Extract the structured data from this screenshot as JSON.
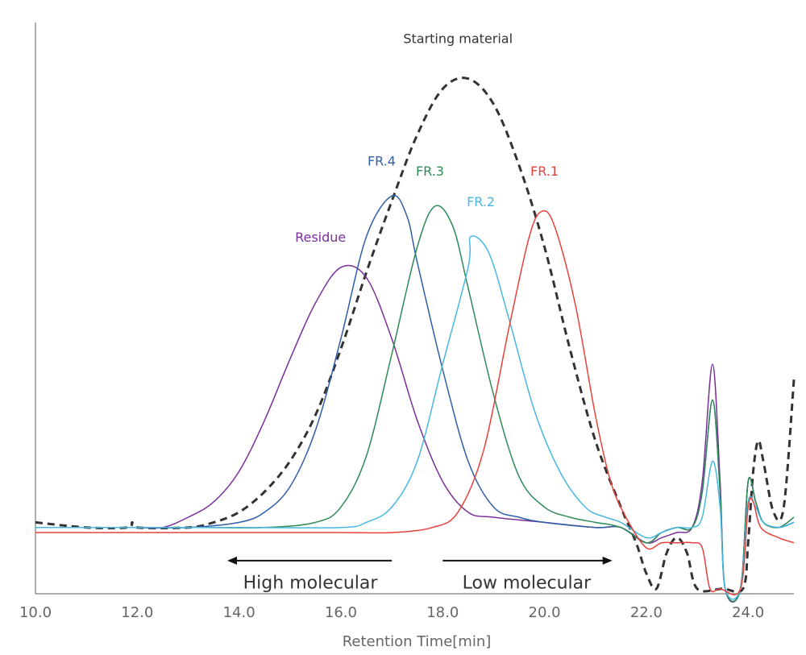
{
  "chart_data": {
    "type": "line",
    "xlabel": "Retention Time[min]",
    "ylabel": "",
    "xlim": [
      10.0,
      24.9
    ],
    "ylim": [
      -0.12,
      1.0
    ],
    "grid": false,
    "x_ticks": [
      "10.0",
      "12.0",
      "14.0",
      "16.0",
      "18.0",
      "20.0",
      "22.0",
      "24.0"
    ],
    "series": [
      {
        "name": "Starting material",
        "color": "#333333",
        "dash": true,
        "points": [
          [
            10.0,
            0.02
          ],
          [
            11.0,
            0.01
          ],
          [
            11.8,
            0.01
          ],
          [
            11.9,
            0.02
          ],
          [
            12.0,
            0.01
          ],
          [
            13.0,
            0.01
          ],
          [
            13.5,
            0.02
          ],
          [
            14.0,
            0.04
          ],
          [
            14.5,
            0.08
          ],
          [
            15.0,
            0.14
          ],
          [
            15.5,
            0.23
          ],
          [
            16.0,
            0.36
          ],
          [
            16.5,
            0.51
          ],
          [
            17.0,
            0.65
          ],
          [
            17.5,
            0.78
          ],
          [
            18.0,
            0.87
          ],
          [
            18.5,
            0.89
          ],
          [
            19.0,
            0.84
          ],
          [
            19.5,
            0.72
          ],
          [
            20.0,
            0.56
          ],
          [
            20.5,
            0.36
          ],
          [
            21.0,
            0.18
          ],
          [
            21.5,
            0.05
          ],
          [
            21.8,
            -0.02
          ],
          [
            22.0,
            -0.08
          ],
          [
            22.2,
            -0.11
          ],
          [
            22.4,
            -0.04
          ],
          [
            22.6,
            -0.01
          ],
          [
            22.8,
            -0.04
          ],
          [
            23.0,
            -0.11
          ],
          [
            23.5,
            -0.11
          ],
          [
            23.9,
            -0.11
          ],
          [
            24.0,
            -0.02
          ],
          [
            24.1,
            0.12
          ],
          [
            24.2,
            0.18
          ],
          [
            24.3,
            0.14
          ],
          [
            24.5,
            0.04
          ],
          [
            24.7,
            0.05
          ],
          [
            24.9,
            0.3
          ]
        ]
      },
      {
        "name": "Residue",
        "color": "#7b2f9a",
        "dash": false,
        "points": [
          [
            10.0,
            0.01
          ],
          [
            11.0,
            0.01
          ],
          [
            12.0,
            0.01
          ],
          [
            12.5,
            0.01
          ],
          [
            13.0,
            0.03
          ],
          [
            13.5,
            0.06
          ],
          [
            14.0,
            0.12
          ],
          [
            14.5,
            0.22
          ],
          [
            15.0,
            0.34
          ],
          [
            15.5,
            0.45
          ],
          [
            16.0,
            0.52
          ],
          [
            16.5,
            0.5
          ],
          [
            17.0,
            0.38
          ],
          [
            17.5,
            0.22
          ],
          [
            18.0,
            0.1
          ],
          [
            18.5,
            0.04
          ],
          [
            19.0,
            0.03
          ],
          [
            20.0,
            0.02
          ],
          [
            21.0,
            0.01
          ],
          [
            21.5,
            0.01
          ],
          [
            22.0,
            -0.02
          ],
          [
            22.3,
            -0.01
          ],
          [
            22.6,
            0.0
          ],
          [
            22.9,
            0.01
          ],
          [
            23.1,
            0.1
          ],
          [
            23.3,
            0.33
          ],
          [
            23.45,
            0.1
          ],
          [
            23.55,
            -0.11
          ],
          [
            23.85,
            -0.11
          ],
          [
            24.0,
            0.1
          ],
          [
            24.15,
            0.06
          ],
          [
            24.3,
            0.02
          ],
          [
            24.6,
            0.01
          ],
          [
            24.9,
            0.02
          ]
        ]
      },
      {
        "name": "FR.4",
        "color": "#2f5fa7",
        "dash": false,
        "points": [
          [
            10.0,
            0.01
          ],
          [
            12.0,
            0.01
          ],
          [
            13.0,
            0.01
          ],
          [
            14.0,
            0.02
          ],
          [
            14.5,
            0.04
          ],
          [
            15.0,
            0.09
          ],
          [
            15.5,
            0.2
          ],
          [
            16.0,
            0.38
          ],
          [
            16.5,
            0.58
          ],
          [
            17.0,
            0.66
          ],
          [
            17.3,
            0.62
          ],
          [
            17.5,
            0.53
          ],
          [
            18.0,
            0.32
          ],
          [
            18.5,
            0.14
          ],
          [
            19.0,
            0.05
          ],
          [
            19.5,
            0.03
          ],
          [
            20.0,
            0.02
          ],
          [
            21.0,
            0.01
          ],
          [
            21.5,
            0.01
          ],
          [
            22.0,
            -0.02
          ],
          [
            22.3,
            0.0
          ],
          [
            22.6,
            0.01
          ],
          [
            22.9,
            0.01
          ],
          [
            23.1,
            0.08
          ],
          [
            23.3,
            0.26
          ],
          [
            23.45,
            0.08
          ],
          [
            23.55,
            -0.11
          ],
          [
            23.85,
            -0.11
          ],
          [
            24.0,
            0.1
          ],
          [
            24.15,
            0.06
          ],
          [
            24.3,
            0.02
          ],
          [
            24.6,
            0.01
          ],
          [
            24.9,
            0.02
          ]
        ]
      },
      {
        "name": "FR.3",
        "color": "#2e8b57",
        "dash": false,
        "points": [
          [
            10.0,
            0.01
          ],
          [
            13.0,
            0.01
          ],
          [
            14.5,
            0.01
          ],
          [
            15.5,
            0.02
          ],
          [
            16.0,
            0.05
          ],
          [
            16.5,
            0.15
          ],
          [
            17.0,
            0.35
          ],
          [
            17.5,
            0.56
          ],
          [
            17.85,
            0.64
          ],
          [
            18.2,
            0.6
          ],
          [
            18.5,
            0.48
          ],
          [
            19.0,
            0.27
          ],
          [
            19.5,
            0.11
          ],
          [
            20.0,
            0.05
          ],
          [
            20.5,
            0.03
          ],
          [
            21.0,
            0.02
          ],
          [
            21.5,
            0.01
          ],
          [
            22.0,
            -0.02
          ],
          [
            22.3,
            0.0
          ],
          [
            22.6,
            0.01
          ],
          [
            22.9,
            0.01
          ],
          [
            23.1,
            0.08
          ],
          [
            23.3,
            0.26
          ],
          [
            23.45,
            0.08
          ],
          [
            23.55,
            -0.11
          ],
          [
            23.85,
            -0.11
          ],
          [
            24.0,
            0.1
          ],
          [
            24.15,
            0.06
          ],
          [
            24.3,
            0.02
          ],
          [
            24.6,
            0.01
          ],
          [
            24.9,
            0.03
          ]
        ]
      },
      {
        "name": "FR.2",
        "color": "#48b8e0",
        "dash": false,
        "points": [
          [
            10.0,
            0.01
          ],
          [
            14.0,
            0.01
          ],
          [
            16.0,
            0.01
          ],
          [
            16.5,
            0.02
          ],
          [
            17.0,
            0.05
          ],
          [
            17.5,
            0.14
          ],
          [
            18.0,
            0.33
          ],
          [
            18.5,
            0.52
          ],
          [
            18.55,
            0.58
          ],
          [
            18.9,
            0.55
          ],
          [
            19.3,
            0.42
          ],
          [
            19.8,
            0.24
          ],
          [
            20.3,
            0.12
          ],
          [
            20.8,
            0.05
          ],
          [
            21.2,
            0.03
          ],
          [
            21.5,
            0.02
          ],
          [
            22.0,
            -0.01
          ],
          [
            22.3,
            0.0
          ],
          [
            22.6,
            0.01
          ],
          [
            22.9,
            0.01
          ],
          [
            23.1,
            0.03
          ],
          [
            23.3,
            0.14
          ],
          [
            23.45,
            0.05
          ],
          [
            23.55,
            -0.11
          ],
          [
            23.85,
            -0.11
          ],
          [
            24.0,
            0.06
          ],
          [
            24.15,
            0.05
          ],
          [
            24.3,
            0.02
          ],
          [
            24.6,
            0.01
          ],
          [
            24.9,
            0.02
          ]
        ]
      },
      {
        "name": "FR.1",
        "color": "#e8413c",
        "dash": false,
        "points": [
          [
            10.0,
            0.0
          ],
          [
            12.0,
            0.0
          ],
          [
            14.0,
            0.0
          ],
          [
            16.0,
            0.0
          ],
          [
            17.0,
            0.0
          ],
          [
            17.8,
            0.01
          ],
          [
            18.3,
            0.04
          ],
          [
            18.8,
            0.16
          ],
          [
            19.3,
            0.4
          ],
          [
            19.7,
            0.58
          ],
          [
            19.95,
            0.63
          ],
          [
            20.2,
            0.6
          ],
          [
            20.6,
            0.45
          ],
          [
            21.0,
            0.23
          ],
          [
            21.3,
            0.1
          ],
          [
            21.6,
            0.03
          ],
          [
            22.0,
            -0.03
          ],
          [
            22.3,
            -0.02
          ],
          [
            22.6,
            -0.02
          ],
          [
            22.9,
            -0.02
          ],
          [
            23.1,
            -0.03
          ],
          [
            23.25,
            -0.11
          ],
          [
            23.45,
            -0.11
          ],
          [
            23.85,
            -0.11
          ],
          [
            24.0,
            0.05
          ],
          [
            24.1,
            0.06
          ],
          [
            24.25,
            0.01
          ],
          [
            24.6,
            -0.01
          ],
          [
            24.9,
            -0.02
          ]
        ]
      }
    ],
    "series_labels": [
      {
        "text": "Starting material",
        "x": 18.3,
        "y": 0.96,
        "color": "#333333"
      },
      {
        "text": "Residue",
        "x": 15.6,
        "y": 0.57,
        "color": "#7b2f9a"
      },
      {
        "text": "FR.4",
        "x": 16.8,
        "y": 0.72,
        "color": "#2f5fa7"
      },
      {
        "text": "FR.3",
        "x": 17.75,
        "y": 0.7,
        "color": "#2e8b57"
      },
      {
        "text": "FR.2",
        "x": 18.75,
        "y": 0.64,
        "color": "#48b8e0"
      },
      {
        "text": "FR.1",
        "x": 20.0,
        "y": 0.7,
        "color": "#e8413c"
      }
    ],
    "annotations": [
      {
        "text": "High molecular",
        "direction": "left",
        "arrow_from": 17.0,
        "arrow_to": 13.8,
        "arrow_y": -0.055,
        "text_x": 15.4,
        "text_y": -0.11
      },
      {
        "text": "Low molecular",
        "direction": "right",
        "arrow_from": 18.0,
        "arrow_to": 21.3,
        "arrow_y": -0.055,
        "text_x": 19.65,
        "text_y": -0.11
      }
    ]
  }
}
